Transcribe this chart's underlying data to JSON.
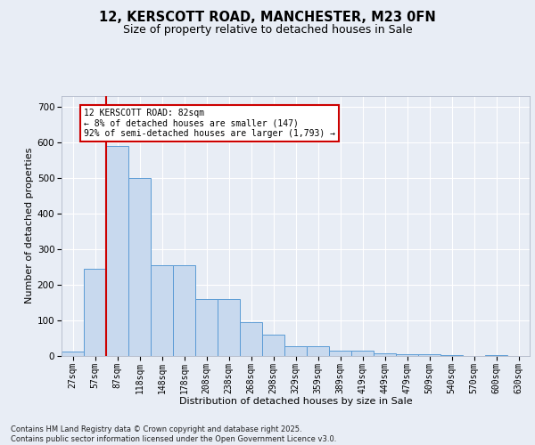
{
  "title_line1": "12, KERSCOTT ROAD, MANCHESTER, M23 0FN",
  "title_line2": "Size of property relative to detached houses in Sale",
  "xlabel": "Distribution of detached houses by size in Sale",
  "ylabel": "Number of detached properties",
  "bar_color": "#c8d9ee",
  "bar_edge_color": "#5b9bd5",
  "background_color": "#e8edf5",
  "grid_color": "#ffffff",
  "categories": [
    "27sqm",
    "57sqm",
    "87sqm",
    "118sqm",
    "148sqm",
    "178sqm",
    "208sqm",
    "238sqm",
    "268sqm",
    "298sqm",
    "329sqm",
    "359sqm",
    "389sqm",
    "419sqm",
    "449sqm",
    "479sqm",
    "509sqm",
    "540sqm",
    "570sqm",
    "600sqm",
    "630sqm"
  ],
  "values": [
    12,
    245,
    590,
    500,
    255,
    255,
    160,
    160,
    95,
    60,
    28,
    28,
    15,
    15,
    8,
    5,
    5,
    2,
    0,
    3,
    0
  ],
  "ylim": [
    0,
    730
  ],
  "yticks": [
    0,
    100,
    200,
    300,
    400,
    500,
    600,
    700
  ],
  "property_line_x": 1.5,
  "property_line_color": "#cc0000",
  "annotation_text": "12 KERSCOTT ROAD: 82sqm\n← 8% of detached houses are smaller (147)\n92% of semi-detached houses are larger (1,793) →",
  "annotation_box_facecolor": "#ffffff",
  "annotation_box_edgecolor": "#cc0000",
  "footnote": "Contains HM Land Registry data © Crown copyright and database right 2025.\nContains public sector information licensed under the Open Government Licence v3.0.",
  "title_fontsize": 10.5,
  "subtitle_fontsize": 9,
  "xlabel_fontsize": 8,
  "ylabel_fontsize": 8,
  "tick_fontsize": 7,
  "annot_fontsize": 7,
  "footnote_fontsize": 6
}
